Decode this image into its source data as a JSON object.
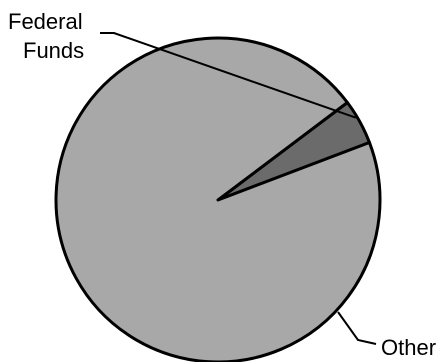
{
  "chart_data": {
    "type": "pie",
    "slices": [
      {
        "label": "Federal Funds",
        "label_lines": [
          "Federal",
          "Funds"
        ],
        "value": 4.5,
        "color": "#6b6b6b"
      },
      {
        "label": "Other",
        "label_lines": [
          "Other"
        ],
        "value": 95.5,
        "color": "#a8a8a8"
      }
    ],
    "start_angle_deg": -37,
    "direction": "clockwise",
    "legend": "none",
    "outline_color": "#000000"
  }
}
